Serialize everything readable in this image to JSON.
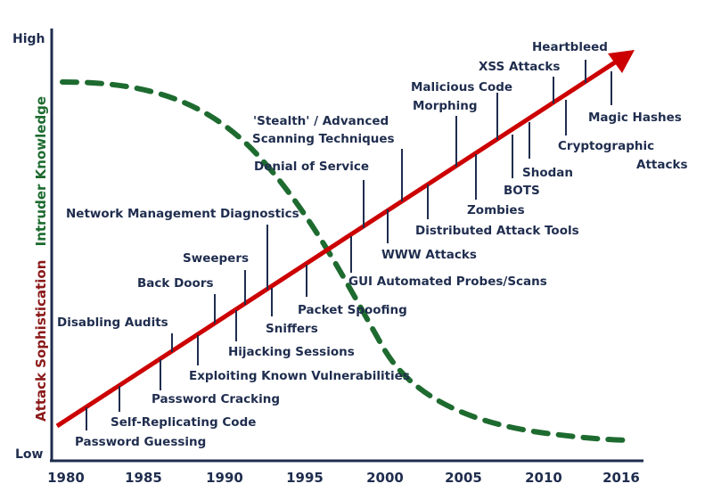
{
  "axis": {
    "high_label": "High",
    "low_label": "Low"
  },
  "y_title": {
    "part1": "Attack Sophistication",
    "part2": "Intruder Knowledge",
    "part1_color": "#8b1a1a",
    "part2_color": "#1e6b30"
  },
  "x_years": [
    "1980",
    "1985",
    "1990",
    "1995",
    "2000",
    "2005",
    "2010",
    "2016"
  ],
  "colors": {
    "text": "#1f2d4e",
    "axis": "#1f2d4e",
    "arrow": "#cc0000",
    "dashed": "#1e6b30"
  },
  "labels": [
    {
      "id": "password-guessing",
      "text": "Password Guessing"
    },
    {
      "id": "self-replicating-code",
      "text": "Self-Replicating Code"
    },
    {
      "id": "password-cracking",
      "text": "Password Cracking"
    },
    {
      "id": "disabling-audits",
      "text": "Disabling Audits"
    },
    {
      "id": "exploiting-known-vulnerabilities",
      "text": "Exploiting Known Vulnerabilities"
    },
    {
      "id": "back-doors",
      "text": "Back Doors"
    },
    {
      "id": "hijacking-sessions",
      "text": "Hijacking Sessions"
    },
    {
      "id": "sweepers",
      "text": "Sweepers"
    },
    {
      "id": "network-management-diagnostics",
      "text": "Network Management Diagnostics"
    },
    {
      "id": "sniffers",
      "text": "Sniffers"
    },
    {
      "id": "packet-spoofing",
      "text": "Packet Spoofing"
    },
    {
      "id": "denial-of-service",
      "text": "Denial of Service"
    },
    {
      "id": "gui-automated-probes",
      "text": "GUI Automated Probes/Scans"
    },
    {
      "id": "stealth-line1",
      "text": "'Stealth' / Advanced"
    },
    {
      "id": "stealth-line2",
      "text": "Scanning Techniques"
    },
    {
      "id": "www-attacks",
      "text": "WWW Attacks"
    },
    {
      "id": "distributed-attack-tools",
      "text": "Distributed Attack Tools"
    },
    {
      "id": "malicious-code-line1",
      "text": "Malicious Code"
    },
    {
      "id": "malicious-code-line2",
      "text": "Morphing"
    },
    {
      "id": "zombies",
      "text": "Zombies"
    },
    {
      "id": "bots",
      "text": "BOTS"
    },
    {
      "id": "shodan",
      "text": "Shodan"
    },
    {
      "id": "xss-attacks",
      "text": "XSS Attacks"
    },
    {
      "id": "heartbleed",
      "text": "Heartbleed"
    },
    {
      "id": "cryptographic-line1",
      "text": "Cryptographic"
    },
    {
      "id": "cryptographic-line2",
      "text": "Attacks"
    },
    {
      "id": "magic-hashes",
      "text": "Magic Hashes"
    }
  ]
}
